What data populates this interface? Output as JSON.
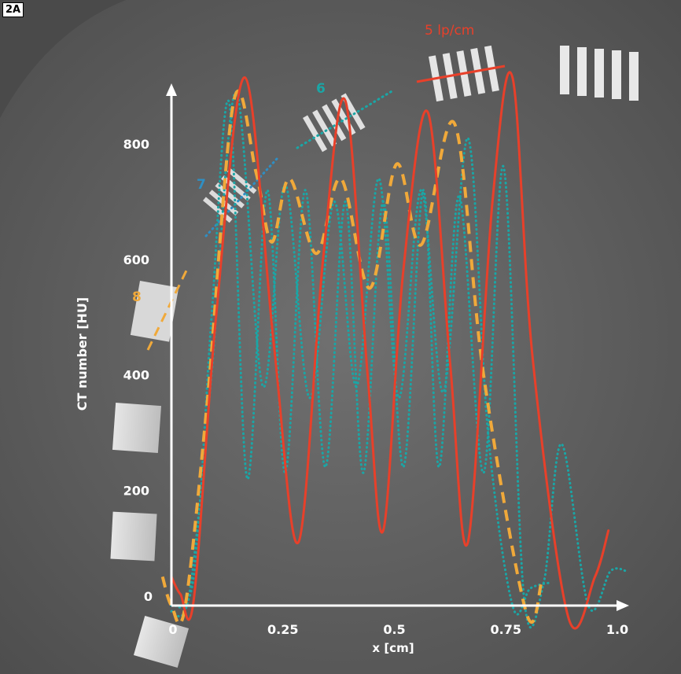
{
  "panel_label": "2A",
  "colors": {
    "red": "#e8402a",
    "orange": "#f0a93a",
    "teal": "#1aa6a6",
    "blue": "#2f8fc4",
    "axis": "#ffffff",
    "background": "#6e6e6e"
  },
  "annotations": {
    "lp5": "5 lp/cm",
    "lp6": "6",
    "lp7": "7",
    "lp8": "8"
  },
  "chart_data": {
    "type": "line",
    "title": "",
    "xlabel": "x [cm]",
    "ylabel": "CT number [HU]",
    "xlim": [
      0,
      1.0
    ],
    "ylim": [
      0,
      900
    ],
    "x_ticks": [
      {
        "value": 0,
        "label": "0"
      },
      {
        "value": 0.25,
        "label": "0.25"
      },
      {
        "value": 0.5,
        "label": "0.5"
      },
      {
        "value": 0.75,
        "label": "0.75"
      },
      {
        "value": 1.0,
        "label": "1.0"
      }
    ],
    "y_ticks": [
      {
        "value": 0,
        "label": "0"
      },
      {
        "value": 200,
        "label": "200"
      },
      {
        "value": 400,
        "label": "400"
      },
      {
        "value": 600,
        "label": "600"
      },
      {
        "value": 800,
        "label": "800"
      }
    ],
    "grid": false,
    "series": [
      {
        "label": "5 lp/cm",
        "style": "solid",
        "color": "#e8402a",
        "x": [
          0,
          0.02,
          0.05,
          0.1,
          0.165,
          0.23,
          0.285,
          0.34,
          0.39,
          0.44,
          0.475,
          0.52,
          0.575,
          0.625,
          0.665,
          0.72,
          0.765,
          0.81,
          0.89,
          0.95,
          0.98
        ],
        "y": [
          50,
          20,
          10,
          500,
          915,
          450,
          110,
          600,
          875,
          400,
          130,
          580,
          855,
          420,
          110,
          700,
          915,
          430,
          -20,
          50,
          130
        ]
      },
      {
        "label": "6",
        "style": "dashed",
        "color": "#f0a93a",
        "x": [
          -0.02,
          0.0,
          0.03,
          0.08,
          0.14,
          0.19,
          0.225,
          0.265,
          0.325,
          0.38,
          0.445,
          0.505,
          0.56,
          0.635,
          0.7,
          0.795,
          0.83
        ],
        "y": [
          50,
          0,
          -5,
          350,
          875,
          750,
          630,
          740,
          610,
          740,
          550,
          765,
          625,
          835,
          400,
          -10,
          40
        ]
      },
      {
        "label": "7",
        "style": "dotted",
        "color": "#1aa6a6",
        "x": [
          0.0,
          0.04,
          0.09,
          0.145,
          0.205,
          0.255,
          0.31,
          0.365,
          0.415,
          0.465,
          0.51,
          0.56,
          0.61,
          0.665,
          0.71,
          0.765,
          0.805,
          0.85
        ],
        "y": [
          -10,
          20,
          400,
          890,
          380,
          730,
          360,
          700,
          380,
          740,
          360,
          720,
          370,
          810,
          300,
          0,
          30,
          40
        ]
      },
      {
        "label": "8",
        "style": "dotted",
        "color": "#1aa6a6",
        "x": [
          0.0,
          0.05,
          0.09,
          0.13,
          0.17,
          0.215,
          0.255,
          0.3,
          0.345,
          0.39,
          0.43,
          0.475,
          0.52,
          0.565,
          0.6,
          0.645,
          0.7,
          0.745,
          0.79,
          0.835,
          0.875,
          0.935,
          0.985,
          1.02
        ],
        "y": [
          0,
          50,
          500,
          870,
          220,
          720,
          230,
          720,
          240,
          700,
          230,
          700,
          240,
          720,
          240,
          710,
          230,
          760,
          20,
          40,
          280,
          0,
          60,
          60
        ]
      }
    ]
  }
}
